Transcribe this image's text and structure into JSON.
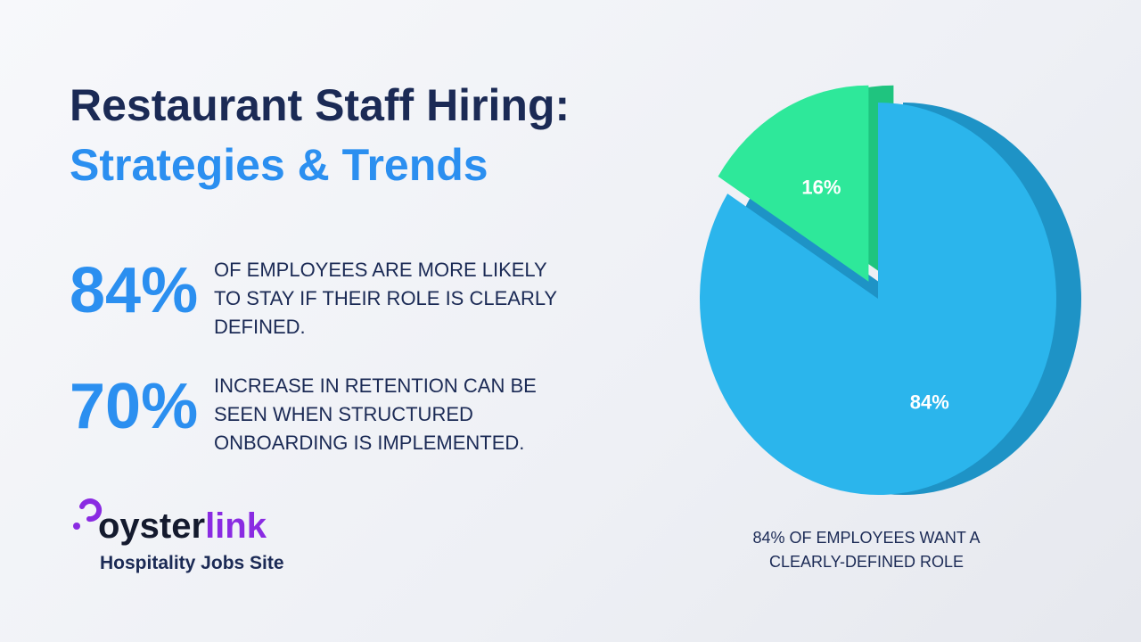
{
  "header": {
    "title": "Restaurant Staff Hiring:",
    "subtitle": "Strategies & Trends"
  },
  "stats": [
    {
      "figure": "84%",
      "lines": [
        "OF EMPLOYEES ARE MORE LIKELY",
        "TO STAY IF THEIR ROLE IS CLEARLY",
        "DEFINED."
      ]
    },
    {
      "figure": "70%",
      "lines": [
        "INCREASE IN RETENTION CAN BE",
        "SEEN WHEN STRUCTURED",
        "ONBOARDING IS IMPLEMENTED."
      ]
    }
  ],
  "logo": {
    "brand_1": "oyster",
    "brand_2": "link",
    "tagline": "Hospitality Jobs Site"
  },
  "chart_data": {
    "type": "pie",
    "values": [
      16,
      84
    ],
    "value_labels": [
      "16%",
      "84%"
    ],
    "colors": [
      "#2ee89a",
      "#2bb5ec"
    ],
    "caption_lines": [
      "84% OF EMPLOYEES WANT A",
      "CLEARLY-DEFINED ROLE"
    ]
  }
}
